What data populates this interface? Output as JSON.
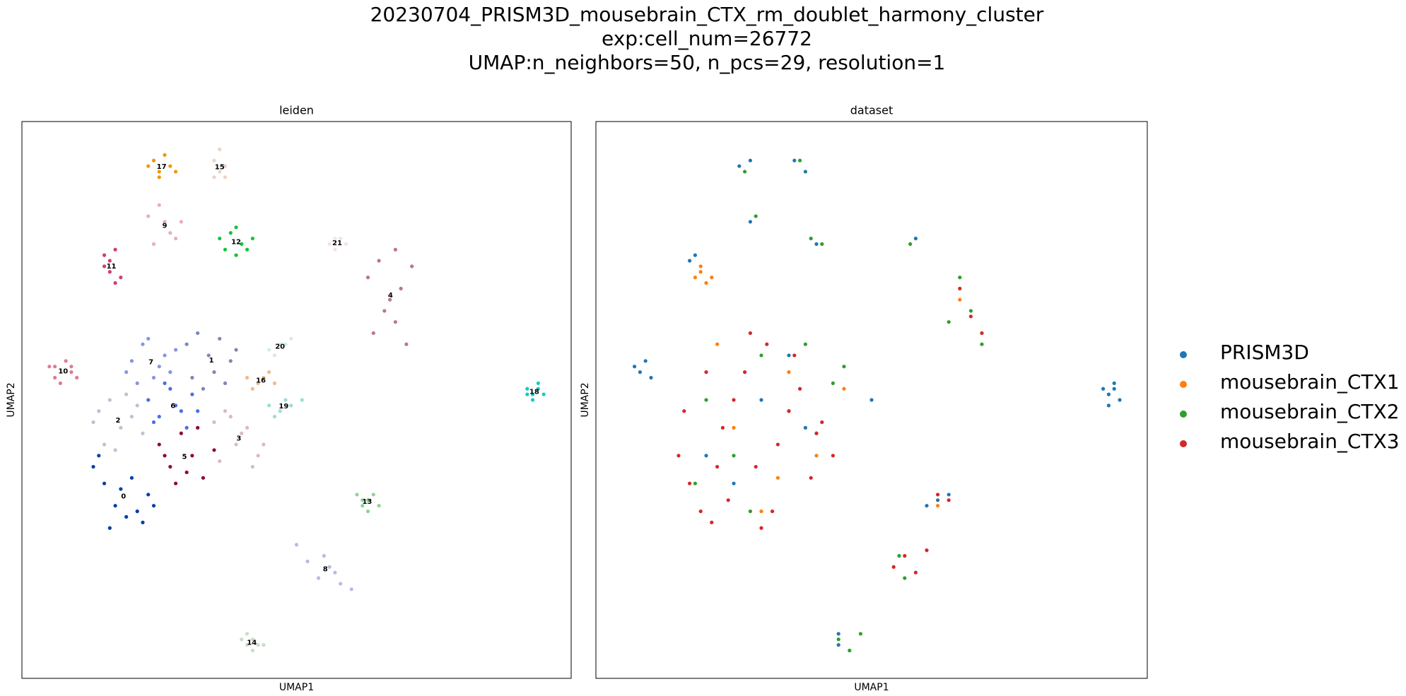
{
  "suptitle": [
    "20230704_PRISM3D_mousebrain_CTX_rm_doublet_harmony_cluster",
    "exp:cell_num=26772",
    "UMAP:n_neighbors=50, n_pcs=29, resolution=1"
  ],
  "chart_data": [
    {
      "type": "scatter",
      "title": "leiden",
      "xlabel": "UMAP1",
      "ylabel": "UMAP2",
      "xlim": [
        0,
        100
      ],
      "ylim": [
        0,
        100
      ],
      "legend": "on data",
      "series": [
        {
          "name": "0",
          "color": "#023fa5",
          "x": [
            13,
            15,
            17,
            19,
            21,
            23,
            16,
            20,
            14,
            22,
            18,
            24
          ],
          "y": [
            38,
            35,
            31,
            29,
            30,
            33,
            27,
            36,
            40,
            28,
            34,
            31
          ]
        },
        {
          "name": "1",
          "color": "#7d87b9",
          "x": [
            30,
            32,
            34,
            36,
            38,
            31,
            35,
            39,
            33,
            37
          ],
          "y": [
            60,
            62,
            58,
            61,
            57,
            54,
            55,
            59,
            52,
            53
          ]
        },
        {
          "name": "2",
          "color": "#bec1d4",
          "x": [
            14,
            16,
            18,
            20,
            22,
            15,
            19,
            17,
            21,
            13
          ],
          "y": [
            48,
            50,
            45,
            47,
            44,
            42,
            51,
            41,
            49,
            46
          ]
        },
        {
          "name": "3",
          "color": "#d6bcc0",
          "x": [
            35,
            37,
            39,
            41,
            43,
            36,
            40,
            42,
            38,
            44
          ],
          "y": [
            46,
            48,
            42,
            45,
            40,
            39,
            44,
            38,
            47,
            42
          ]
        },
        {
          "name": "4",
          "color": "#bb7784",
          "x": [
            63,
            65,
            67,
            69,
            71,
            64,
            68,
            70,
            66,
            68
          ],
          "y": [
            72,
            75,
            68,
            70,
            74,
            62,
            64,
            60,
            66,
            77
          ]
        },
        {
          "name": "5",
          "color": "#8e063b",
          "x": [
            25,
            27,
            29,
            31,
            33,
            35,
            28,
            32,
            30,
            26
          ],
          "y": [
            42,
            38,
            44,
            40,
            36,
            41,
            35,
            45,
            37,
            40
          ]
        },
        {
          "name": "6",
          "color": "#4a6fe3",
          "x": [
            23,
            25,
            27,
            29,
            31,
            24,
            28,
            30,
            26,
            32
          ],
          "y": [
            50,
            47,
            52,
            48,
            51,
            46,
            49,
            45,
            53,
            48
          ]
        },
        {
          "name": "7",
          "color": "#8595e1",
          "x": [
            20,
            22,
            24,
            26,
            21,
            25,
            23,
            27,
            19,
            28
          ],
          "y": [
            57,
            60,
            54,
            58,
            53,
            56,
            61,
            55,
            55,
            59
          ]
        },
        {
          "name": "8",
          "color": "#b5bbe3",
          "x": [
            50,
            52,
            54,
            56,
            58,
            60,
            55,
            57
          ],
          "y": [
            24,
            21,
            18,
            20,
            17,
            16,
            22,
            19
          ]
        },
        {
          "name": "9",
          "color": "#e6afb9",
          "x": [
            23,
            25,
            27,
            29,
            24,
            28,
            26
          ],
          "y": [
            83,
            85,
            80,
            82,
            78,
            79,
            82
          ]
        },
        {
          "name": "10",
          "color": "#e07b91",
          "x": [
            5,
            6,
            8,
            9,
            10,
            7,
            6,
            9
          ],
          "y": [
            56,
            54,
            57,
            55,
            54,
            53,
            56,
            56
          ]
        },
        {
          "name": "11",
          "color": "#d33f6a",
          "x": [
            15,
            16,
            17,
            18,
            15,
            17,
            16
          ],
          "y": [
            76,
            73,
            77,
            72,
            74,
            71,
            75
          ]
        },
        {
          "name": "12",
          "color": "#11c638",
          "x": [
            36,
            38,
            40,
            42,
            37,
            41,
            39,
            39
          ],
          "y": [
            79,
            80,
            78,
            79,
            77,
            77,
            81,
            76
          ]
        },
        {
          "name": "13",
          "color": "#8dd593",
          "x": [
            61,
            62,
            63,
            64,
            65,
            62,
            63
          ],
          "y": [
            33,
            31,
            32,
            33,
            31,
            32,
            30
          ]
        },
        {
          "name": "14",
          "color": "#c6dec7",
          "x": [
            40,
            41,
            42,
            43,
            44,
            41,
            42
          ],
          "y": [
            7,
            6,
            7,
            6,
            6,
            8,
            5
          ]
        },
        {
          "name": "15",
          "color": "#ead3c6",
          "x": [
            35,
            36,
            37,
            36,
            35,
            37
          ],
          "y": [
            93,
            91,
            92,
            95,
            90,
            90
          ]
        },
        {
          "name": "16",
          "color": "#f0b98d",
          "x": [
            41,
            43,
            45,
            46,
            42,
            44
          ],
          "y": [
            54,
            53,
            55,
            53,
            52,
            54
          ]
        },
        {
          "name": "17",
          "color": "#ef9708",
          "x": [
            23,
            24,
            25,
            26,
            27,
            28,
            25
          ],
          "y": [
            92,
            93,
            91,
            94,
            92,
            91,
            90
          ]
        },
        {
          "name": "18",
          "color": "#0fcfc0",
          "x": [
            92,
            93,
            94,
            95,
            93,
            94,
            92
          ],
          "y": [
            52,
            51,
            53,
            51,
            50,
            52,
            51
          ]
        },
        {
          "name": "19",
          "color": "#9cded6",
          "x": [
            45,
            47,
            49,
            51,
            46,
            48
          ],
          "y": [
            49,
            48,
            49,
            50,
            47,
            50
          ]
        },
        {
          "name": "20",
          "color": "#d5eae7",
          "x": [
            45,
            47,
            49,
            46,
            48
          ],
          "y": [
            59,
            60,
            61,
            58,
            60
          ]
        },
        {
          "name": "21",
          "color": "#f3e1eb",
          "x": [
            56,
            57,
            58,
            59,
            57
          ],
          "y": [
            78,
            79,
            79,
            78,
            77
          ]
        }
      ]
    },
    {
      "type": "scatter",
      "title": "dataset",
      "xlabel": "UMAP1",
      "ylabel": "UMAP2",
      "xlim": [
        0,
        100
      ],
      "ylim": [
        0,
        100
      ],
      "legend": "right margin",
      "series": [
        {
          "name": "PRISM3D",
          "color": "#1f77b4",
          "x": [
            92,
            93,
            94,
            95,
            93,
            94,
            7,
            8,
            9,
            10,
            26,
            28,
            36,
            38,
            17,
            18,
            28,
            40,
            58,
            44,
            62,
            64,
            60,
            20,
            30,
            38,
            25,
            35,
            44,
            50
          ],
          "y": [
            52,
            51,
            53,
            50,
            49,
            52,
            56,
            55,
            57,
            54,
            92,
            93,
            93,
            91,
            75,
            76,
            82,
            78,
            79,
            8,
            32,
            33,
            31,
            40,
            50,
            45,
            35,
            58,
            6,
            50
          ]
        },
        {
          "name": "mousebrain_CTX1",
          "color": "#ff7f0e",
          "x": [
            18,
            19,
            20,
            19,
            21,
            25,
            35,
            45,
            30,
            40,
            22,
            33,
            66,
            62
          ],
          "y": [
            72,
            73,
            71,
            74,
            72,
            45,
            55,
            52,
            30,
            40,
            60,
            36,
            68,
            31
          ]
        },
        {
          "name": "mousebrain_CTX2",
          "color": "#2ca02c",
          "x": [
            27,
            29,
            37,
            39,
            41,
            66,
            68,
            70,
            64,
            20,
            25,
            30,
            35,
            40,
            45,
            28,
            38,
            18,
            55,
            46,
            48,
            56,
            57,
            44,
            43
          ],
          "y": [
            91,
            83,
            93,
            79,
            78,
            72,
            66,
            60,
            64,
            50,
            40,
            58,
            48,
            44,
            56,
            30,
            60,
            35,
            22,
            5,
            8,
            18,
            78,
            7,
            53
          ]
        },
        {
          "name": "mousebrain_CTX3",
          "color": "#d62728",
          "x": [
            15,
            17,
            19,
            21,
            23,
            25,
            27,
            29,
            31,
            33,
            35,
            37,
            39,
            41,
            43,
            20,
            24,
            28,
            32,
            36,
            40,
            16,
            22,
            54,
            56,
            58,
            60,
            66,
            68,
            70,
            62,
            64,
            30
          ],
          "y": [
            40,
            35,
            30,
            28,
            45,
            50,
            55,
            38,
            60,
            42,
            48,
            52,
            36,
            46,
            40,
            55,
            32,
            62,
            30,
            58,
            44,
            48,
            38,
            20,
            22,
            19,
            23,
            70,
            65,
            62,
            33,
            32,
            27
          ]
        }
      ]
    }
  ]
}
